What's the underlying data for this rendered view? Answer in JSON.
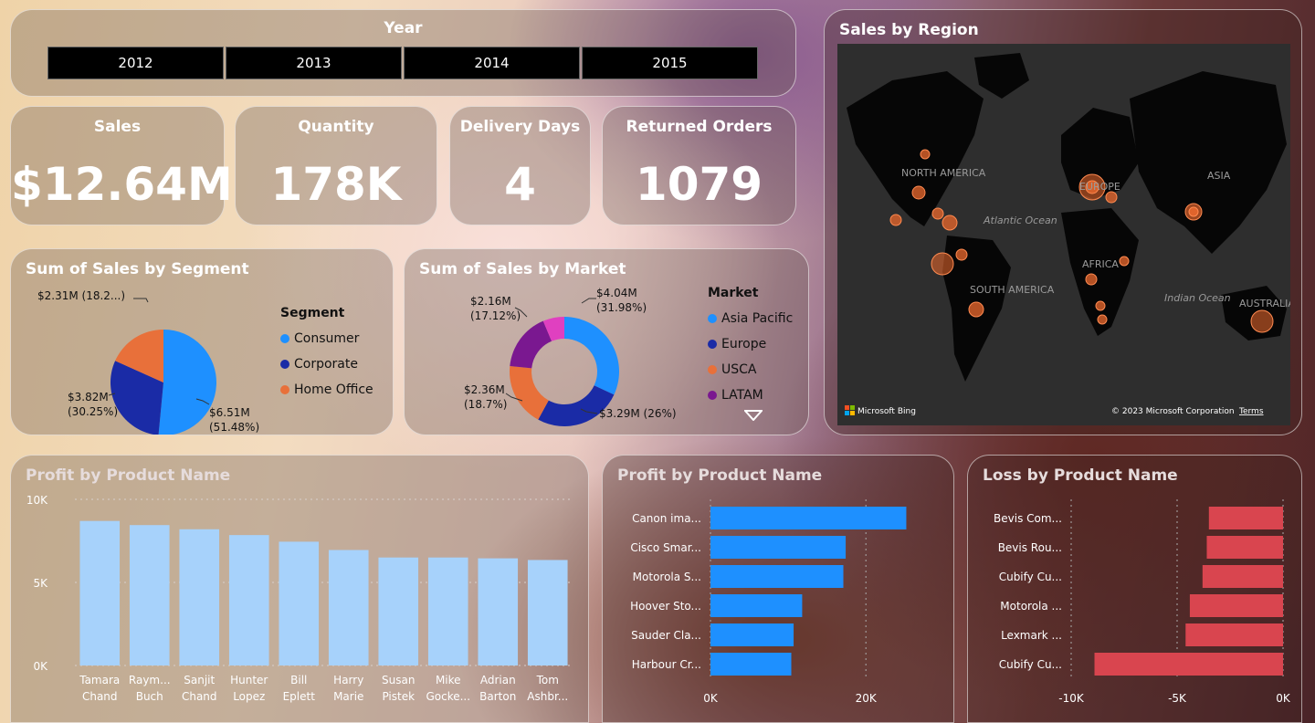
{
  "year_slicer": {
    "title": "Year",
    "years": [
      "2012",
      "2013",
      "2014",
      "2015"
    ]
  },
  "kpis": {
    "sales": {
      "label": "Sales",
      "value": "$12.64M"
    },
    "quantity": {
      "label": "Quantity",
      "value": "178K"
    },
    "delivery_days": {
      "label": "Delivery Days",
      "value": "4"
    },
    "returned_orders": {
      "label": "Returned Orders",
      "value": "1079"
    }
  },
  "map": {
    "title": "Sales by Region",
    "labels": [
      "NORTH AMERICA",
      "EUROPE",
      "ASIA",
      "Atlantic Ocean",
      "AFRICA",
      "SOUTH AMERICA",
      "Indian Ocean",
      "AUSTRALIA"
    ],
    "bing_label": "Microsoft Bing",
    "copyright": "© 2023 Microsoft Corporation",
    "terms_label": "Terms",
    "bubble_color": "#e0642c"
  },
  "chart_data": [
    {
      "type": "pie",
      "title": "Sum of Sales by Segment",
      "legend_title": "Segment",
      "categories": [
        "Consumer",
        "Corporate",
        "Home Office"
      ],
      "values": [
        6.51,
        3.82,
        2.31
      ],
      "percents": [
        51.48,
        30.25,
        18.2
      ],
      "data_labels": [
        [
          "$6.51M",
          "(51.48%)"
        ],
        [
          "$3.82M",
          "(30.25%)"
        ],
        [
          "$2.31M (18.2...)"
        ]
      ],
      "colors": [
        "#1e90ff",
        "#1a2ba6",
        "#e8703a"
      ]
    },
    {
      "type": "pie",
      "title": "Sum of Sales by Market",
      "legend_title": "Market",
      "categories": [
        "Asia Pacific",
        "Europe",
        "USCA",
        "LATAM"
      ],
      "values": [
        4.04,
        3.29,
        2.36,
        2.16
      ],
      "percents": [
        31.98,
        26.0,
        18.7,
        17.12
      ],
      "data_labels": [
        [
          "$4.04M",
          "(31.98%)"
        ],
        [
          "$3.29M (26%)"
        ],
        [
          "$2.36M",
          "(18.7%)"
        ],
        [
          "$2.16M",
          "(17.12%)"
        ]
      ],
      "colors": [
        "#1e90ff",
        "#1a2ba6",
        "#e8703a",
        "#7a1890",
        "#e040c0"
      ]
    },
    {
      "type": "bar",
      "title": "Profit by Product Name",
      "categories": [
        [
          "Tamara",
          "Chand"
        ],
        [
          "Raym...",
          "Buch"
        ],
        [
          "Sanjit",
          "Chand"
        ],
        [
          "Hunter",
          "Lopez"
        ],
        [
          "Bill",
          "Eplett"
        ],
        [
          "Harry",
          "Marie"
        ],
        [
          "Susan",
          "Pistek"
        ],
        [
          "Mike",
          "Gocke..."
        ],
        [
          "Adrian",
          "Barton"
        ],
        [
          "Tom",
          "Ashbr..."
        ]
      ],
      "values": [
        8700,
        8450,
        8200,
        7850,
        7450,
        6950,
        6500,
        6500,
        6450,
        6350
      ],
      "ylim": [
        0,
        10000
      ],
      "yticks": [
        "0K",
        "5K",
        "10K"
      ],
      "color": "#a7d2fb"
    },
    {
      "type": "bar",
      "orientation": "horizontal",
      "title": "Profit by Product Name",
      "categories": [
        "Canon ima...",
        "Cisco Smar...",
        "Motorola S...",
        "Hoover Sto...",
        "Sauder Cla...",
        "Harbour Cr..."
      ],
      "values": [
        25200,
        17400,
        17100,
        11800,
        10700,
        10400
      ],
      "xlim": [
        0,
        25500
      ],
      "xticks": [
        "0K",
        "20K"
      ],
      "color": "#1e90ff"
    },
    {
      "type": "bar",
      "orientation": "horizontal",
      "title": "Loss by Product Name",
      "categories": [
        "Bevis Com...",
        "Bevis Rou...",
        "Cubify Cu...",
        "Motorola ...",
        "Lexmark ...",
        "Cubify Cu..."
      ],
      "values": [
        -3500,
        -3600,
        -3800,
        -4400,
        -4600,
        -8900
      ],
      "xlim": [
        -10000,
        0
      ],
      "xticks": [
        "-10K",
        "-5K",
        "0K"
      ],
      "color": "#d9454f"
    }
  ]
}
